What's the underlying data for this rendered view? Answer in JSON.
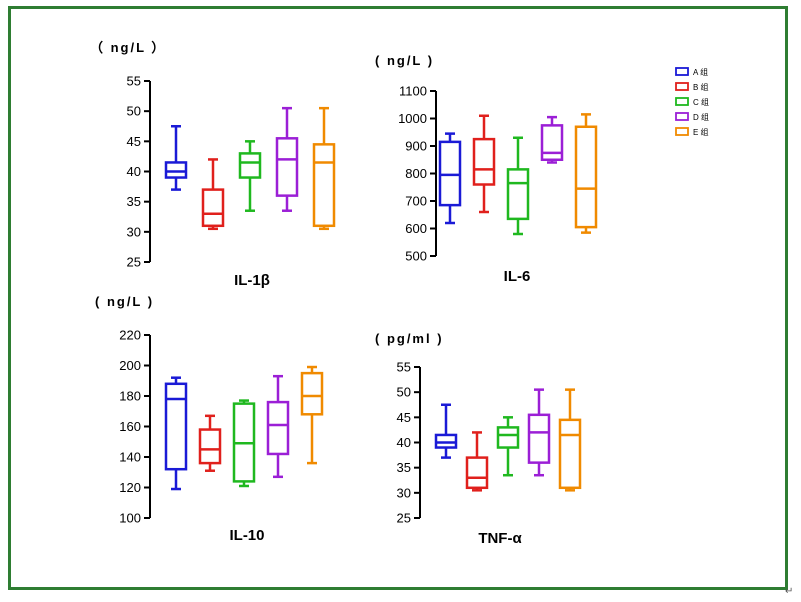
{
  "legend": [
    {
      "label": "A 组",
      "color": "#1a1ad6"
    },
    {
      "label": "B 组",
      "color": "#e0201c"
    },
    {
      "label": "C 组",
      "color": "#1fb81f"
    },
    {
      "label": "D 组",
      "color": "#9b1fd6"
    },
    {
      "label": "E 组",
      "color": "#f08a00"
    }
  ],
  "corner_mark": "↵",
  "chart_data": [
    {
      "type": "box",
      "unit_label": "（ ng/L ）",
      "xlabel": "IL-1β",
      "ylim": [
        25,
        55
      ],
      "yticks": [
        25,
        30,
        35,
        40,
        45,
        50,
        55
      ],
      "series": [
        {
          "name": "A 组",
          "min": 37,
          "q1": 39,
          "median": 40,
          "q3": 41.5,
          "max": 47.5
        },
        {
          "name": "B 组",
          "min": 30.5,
          "q1": 31,
          "median": 33,
          "q3": 37,
          "max": 42
        },
        {
          "name": "C 组",
          "min": 33.5,
          "q1": 39,
          "median": 41.5,
          "q3": 43,
          "max": 45
        },
        {
          "name": "D 组",
          "min": 33.5,
          "q1": 36,
          "median": 42,
          "q3": 45.5,
          "max": 50.5
        },
        {
          "name": "E 组",
          "min": 30.5,
          "q1": 31,
          "median": 41.5,
          "q3": 44.5,
          "max": 50.5
        }
      ]
    },
    {
      "type": "box",
      "unit_label": "( ng/L )",
      "xlabel": "IL-6",
      "ylim": [
        500,
        1100
      ],
      "yticks": [
        500,
        600,
        700,
        800,
        900,
        1000,
        1100
      ],
      "series": [
        {
          "name": "A 组",
          "min": 620,
          "q1": 685,
          "median": 795,
          "q3": 915,
          "max": 945
        },
        {
          "name": "B 组",
          "min": 660,
          "q1": 760,
          "median": 815,
          "q3": 925,
          "max": 1010
        },
        {
          "name": "C 组",
          "min": 580,
          "q1": 635,
          "median": 765,
          "q3": 815,
          "max": 930
        },
        {
          "name": "D 组",
          "min": 840,
          "q1": 850,
          "median": 875,
          "q3": 975,
          "max": 1005
        },
        {
          "name": "E 组",
          "min": 585,
          "q1": 605,
          "median": 745,
          "q3": 970,
          "max": 1015
        }
      ]
    },
    {
      "type": "box",
      "unit_label": "( ng/L )",
      "xlabel": "IL-10",
      "ylim": [
        100,
        220
      ],
      "yticks": [
        100,
        120,
        140,
        160,
        180,
        200,
        220
      ],
      "series": [
        {
          "name": "A 组",
          "min": 119,
          "q1": 132,
          "median": 178,
          "q3": 188,
          "max": 192
        },
        {
          "name": "B 组",
          "min": 131,
          "q1": 136,
          "median": 145,
          "q3": 158,
          "max": 167
        },
        {
          "name": "C 组",
          "min": 121,
          "q1": 124,
          "median": 149,
          "q3": 175,
          "max": 177
        },
        {
          "name": "D 组",
          "min": 127,
          "q1": 142,
          "median": 161,
          "q3": 176,
          "max": 193
        },
        {
          "name": "E 组",
          "min": 136,
          "q1": 168,
          "median": 180,
          "q3": 195,
          "max": 199
        }
      ]
    },
    {
      "type": "box",
      "unit_label": "( pg/ml )",
      "xlabel": "TNF-α",
      "ylim": [
        25,
        55
      ],
      "yticks": [
        25,
        30,
        35,
        40,
        45,
        50,
        55
      ],
      "series": [
        {
          "name": "A 组",
          "min": 37,
          "q1": 39,
          "median": 40,
          "q3": 41.5,
          "max": 47.5
        },
        {
          "name": "B 组",
          "min": 30.5,
          "q1": 31,
          "median": 33,
          "q3": 37,
          "max": 42
        },
        {
          "name": "C 组",
          "min": 33.5,
          "q1": 39,
          "median": 41.5,
          "q3": 43,
          "max": 45
        },
        {
          "name": "D 组",
          "min": 33.5,
          "q1": 36,
          "median": 42,
          "q3": 45.5,
          "max": 50.5
        },
        {
          "name": "E 组",
          "min": 30.5,
          "q1": 31,
          "median": 41.5,
          "q3": 44.5,
          "max": 50.5
        }
      ]
    }
  ]
}
